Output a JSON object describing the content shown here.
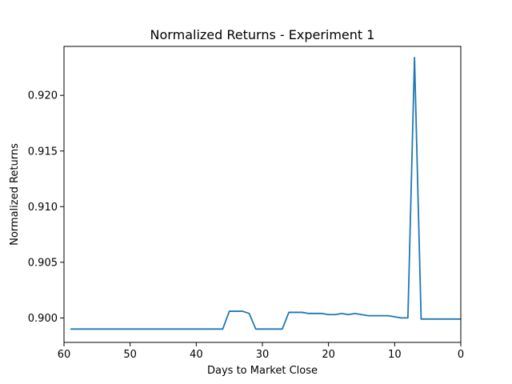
{
  "chart_data": {
    "type": "line",
    "title": "Normalized Returns - Experiment 1",
    "xlabel": "Days to Market Close",
    "ylabel": "Normalized Returns",
    "xlim": [
      60,
      0
    ],
    "ylim": [
      0.8978,
      0.9244
    ],
    "x_inverted": true,
    "grid": false,
    "x_ticks": [
      60,
      50,
      40,
      30,
      20,
      10,
      0
    ],
    "y_ticks": [
      0.9,
      0.905,
      0.91,
      0.915,
      0.92
    ],
    "y_tick_labels": [
      "0.900",
      "0.905",
      "0.910",
      "0.915",
      "0.920"
    ],
    "series": [
      {
        "color": "#1f77b4",
        "x": [
          59,
          58,
          57,
          56,
          55,
          54,
          53,
          52,
          51,
          50,
          49,
          48,
          47,
          46,
          45,
          44,
          43,
          42,
          41,
          40,
          39,
          38,
          37,
          36,
          35,
          34,
          33,
          32,
          31,
          30,
          29,
          28,
          27,
          26,
          25,
          24,
          23,
          22,
          21,
          20,
          19,
          18,
          17,
          16,
          15,
          14,
          13,
          12,
          11,
          10,
          9,
          8,
          7,
          6,
          5,
          4,
          3,
          2,
          1,
          0
        ],
        "y": [
          0.899,
          0.899,
          0.899,
          0.899,
          0.899,
          0.899,
          0.899,
          0.899,
          0.899,
          0.899,
          0.899,
          0.899,
          0.899,
          0.899,
          0.899,
          0.899,
          0.899,
          0.899,
          0.899,
          0.899,
          0.899,
          0.899,
          0.899,
          0.899,
          0.9006,
          0.9006,
          0.9006,
          0.9004,
          0.899,
          0.899,
          0.899,
          0.899,
          0.899,
          0.9005,
          0.9005,
          0.9005,
          0.9004,
          0.9004,
          0.9004,
          0.9003,
          0.9003,
          0.9004,
          0.9003,
          0.9004,
          0.9003,
          0.9002,
          0.9002,
          0.9002,
          0.9002,
          0.9001,
          0.9,
          0.9,
          0.9234,
          0.8999,
          0.8999,
          0.8999,
          0.8999,
          0.8999,
          0.8999,
          0.8999
        ]
      }
    ]
  }
}
